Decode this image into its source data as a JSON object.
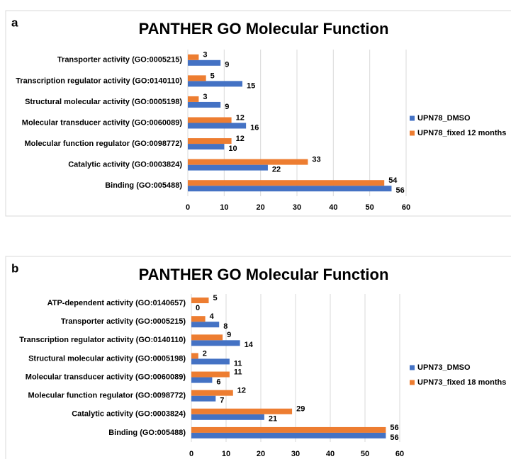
{
  "chart_data": [
    {
      "type": "hbar",
      "panel_label": "a",
      "title": "PANTHER GO Molecular Function",
      "categories": [
        "Transporter activity (GO:0005215)",
        "Transcription regulator activity (GO:0140110)",
        "Structural molecular activity (GO:0005198)",
        "Molecular transducer activity (GO:0060089)",
        "Molecular function regulator (GO:0098772)",
        "Catalytic activity (GO:0003824)",
        "Binding (GO:005488)"
      ],
      "series": [
        {
          "name": "UPN78_DMSO",
          "color": "#4472c4",
          "values": [
            9,
            15,
            9,
            16,
            10,
            22,
            56
          ]
        },
        {
          "name": "UPN78_fixed 12 months",
          "color": "#ed7d31",
          "values": [
            3,
            5,
            3,
            12,
            12,
            33,
            54
          ]
        }
      ],
      "xlim": [
        0,
        60
      ],
      "xticks": [
        0,
        10,
        20,
        30,
        40,
        50,
        60
      ],
      "grid": true,
      "legend": "right"
    },
    {
      "type": "hbar",
      "panel_label": "b",
      "title": "PANTHER GO Molecular Function",
      "categories": [
        "ATP-dependent activity (GO:0140657)",
        "Transporter activity (GO:0005215)",
        "Transcription regulator activity (GO:0140110)",
        "Structural molecular activity (GO:0005198)",
        "Molecular transducer activity (GO:0060089)",
        "Molecular function regulator (GO:0098772)",
        "Catalytic activity (GO:0003824)",
        "Binding (GO:005488)"
      ],
      "series": [
        {
          "name": "UPN73_DMSO",
          "color": "#4472c4",
          "values": [
            0,
            8,
            14,
            11,
            6,
            7,
            21,
            56
          ]
        },
        {
          "name": "UPN73_fixed 18 months",
          "color": "#ed7d31",
          "values": [
            5,
            4,
            9,
            2,
            11,
            12,
            29,
            56
          ]
        }
      ],
      "xlim": [
        0,
        60
      ],
      "xticks": [
        0,
        10,
        20,
        30,
        40,
        50,
        60
      ],
      "grid": true,
      "legend": "right"
    }
  ]
}
